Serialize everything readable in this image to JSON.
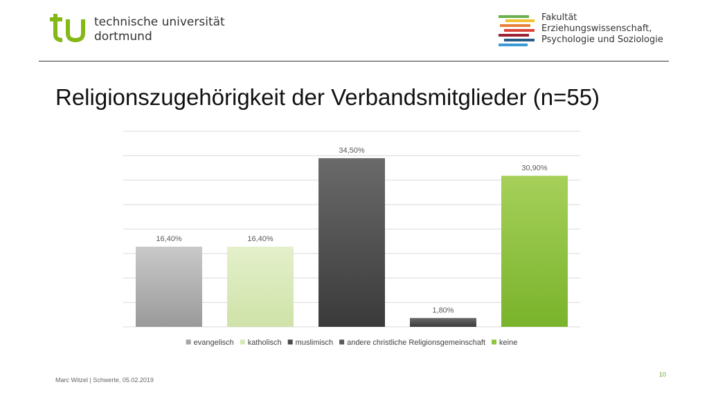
{
  "header": {
    "university_line1": "technische universität",
    "university_line2": "dortmund",
    "faculty_line1": "Fakultät",
    "faculty_line2": "Erziehungswissenschaft,",
    "faculty_line3": "Psychologie und Soziologie",
    "colors": {
      "tu_green": "#84b817",
      "faculty_stripes": [
        "#6ab04c",
        "#f2c12e",
        "#e8803a",
        "#d9453a",
        "#9b2335",
        "#2a5c8a",
        "#3a9bd5"
      ]
    }
  },
  "title": "Religionszugehörigkeit der Verbandsmitglieder (n=55)",
  "footer": {
    "left": "Marc Witzel | Schwerte, 05.02.2019",
    "page_number": "10"
  },
  "chart_data": {
    "type": "bar",
    "title": "",
    "xlabel": "",
    "ylabel": "",
    "categories": [
      "evangelisch",
      "katholisch",
      "muslimisch",
      "andere christliche Religionsgemeinschaft",
      "keine"
    ],
    "values": [
      16.4,
      16.4,
      34.5,
      1.8,
      30.9
    ],
    "data_labels": [
      "16,40%",
      "16,40%",
      "34,50%",
      "1,80%",
      "30,90%"
    ],
    "ylim": [
      0,
      40
    ],
    "grid": true,
    "legend_position": "bottom",
    "colors": [
      [
        "#c9c9c9",
        "#9a9a9a"
      ],
      [
        "#e4f0cb",
        "#cfe2a8"
      ],
      [
        "#6a6a6a",
        "#3a3a3a"
      ],
      [
        "#6a6a6a",
        "#3a3a3a"
      ],
      [
        "#a6d05a",
        "#79b32b"
      ]
    ],
    "legend_colors": [
      "#a6a6a6",
      "#d7e9b8",
      "#4a4a4a",
      "#5a5a5a",
      "#8dc63f"
    ]
  }
}
